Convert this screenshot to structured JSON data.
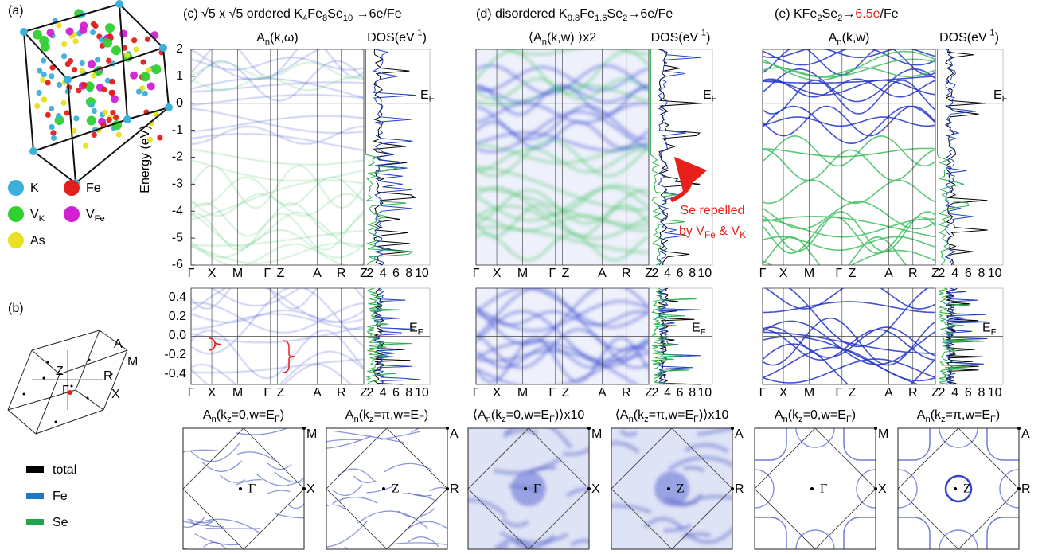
{
  "panel_a": {
    "label": "(a)",
    "legend": [
      {
        "name": [
          "K"
        ],
        "color": "#3bb0d8"
      },
      {
        "name": [
          "Fe"
        ],
        "color": "#e0201b"
      },
      {
        "name": [
          "V",
          {
            "sub": "K"
          }
        ],
        "color": "#2fd02f"
      },
      {
        "name": [
          "V",
          {
            "sub": "Fe"
          }
        ],
        "color": "#d21fd2"
      },
      {
        "name": [
          "As"
        ],
        "color": "#e8e020"
      }
    ]
  },
  "panel_b": {
    "label": "(b)",
    "bz_labels": [
      "A",
      "M",
      "Z",
      "Γ",
      "R",
      "X"
    ],
    "legend": [
      {
        "name": "total",
        "color": "#000000"
      },
      {
        "name": "Fe",
        "color": "#1f77c0"
      },
      {
        "name": "Se",
        "color": "#1fa64a"
      }
    ]
  },
  "y_label": "Energy (eV)",
  "energy_ticks": [
    "2",
    "1",
    "0",
    "-1",
    "-2",
    "-3",
    "-4",
    "-5",
    "-6"
  ],
  "zoom_ticks": [
    "0.4",
    "0.2",
    "0.0",
    "-0.2",
    "-0.4"
  ],
  "kpoints": [
    "Γ",
    "X",
    "M",
    "Γ",
    "Z",
    "A",
    "R",
    "Z"
  ],
  "dos_ticks": [
    "2",
    "4",
    "6",
    "8",
    "10"
  ],
  "ef_label": [
    "E",
    {
      "sub": "F"
    }
  ],
  "dos_title": [
    "DOS(eV",
    {
      "sup": "-1"
    },
    ")"
  ],
  "fs_labels": {
    "first": [
      "M",
      "X",
      "Γ"
    ],
    "second": [
      "A",
      "R",
      "Z"
    ]
  },
  "panels": [
    {
      "title": [
        "(c) √5 x √5 ordered K",
        {
          "sub": "4"
        },
        "Fe",
        {
          "sub": "8"
        },
        "Se",
        {
          "sub": "10"
        },
        " →6e/Fe"
      ],
      "band_title": [
        "A",
        {
          "sub": "n"
        },
        "(k,ω)"
      ],
      "fs_titles": [
        [
          "A",
          {
            "sub": "n"
          },
          "(k",
          {
            "sub": "z"
          },
          "=0,w=E",
          {
            "sub": "F"
          },
          ")"
        ],
        [
          "A",
          {
            "sub": "n"
          },
          "(k",
          {
            "sub": "z"
          },
          "=π,w=E",
          {
            "sub": "F"
          },
          ")"
        ]
      ]
    },
    {
      "title": [
        "(d) disordered K",
        {
          "sub": "0.8"
        },
        "Fe",
        {
          "sub": "1.6"
        },
        "Se",
        {
          "sub": "2"
        },
        "→6e/Fe"
      ],
      "band_title": [
        "⟨A",
        {
          "sub": "n"
        },
        "(k,w) ⟩x2"
      ],
      "fs_titles": [
        [
          "⟨A",
          {
            "sub": "n"
          },
          "(k",
          {
            "sub": "z"
          },
          "=0,w=E",
          {
            "sub": "F"
          },
          ")⟩x10"
        ],
        [
          "⟨A",
          {
            "sub": "n"
          },
          "(k",
          {
            "sub": "z"
          },
          "=π,w=E",
          {
            "sub": "F"
          },
          ")⟩x10"
        ]
      ],
      "annotation": [
        [
          "Se repelled"
        ],
        [
          "by V",
          {
            "sub": "Fe"
          },
          " & V",
          {
            "sub": "K"
          }
        ]
      ]
    },
    {
      "title": [
        "(e) KFe",
        {
          "sub": "2"
        },
        "Se",
        {
          "sub": "2"
        },
        "→",
        {
          "text": "6.5e",
          "color": "#e8201b"
        },
        "/Fe"
      ],
      "band_title": [
        "A",
        {
          "sub": "n"
        },
        "(k,w)"
      ],
      "fs_titles": [
        [
          "A",
          {
            "sub": "n"
          },
          "(k",
          {
            "sub": "z"
          },
          "=0,w=E",
          {
            "sub": "F"
          },
          ")"
        ],
        [
          "A",
          {
            "sub": "n"
          },
          "(k",
          {
            "sub": "z"
          },
          "=π,w=E",
          {
            "sub": "F"
          },
          ")"
        ]
      ]
    }
  ]
}
